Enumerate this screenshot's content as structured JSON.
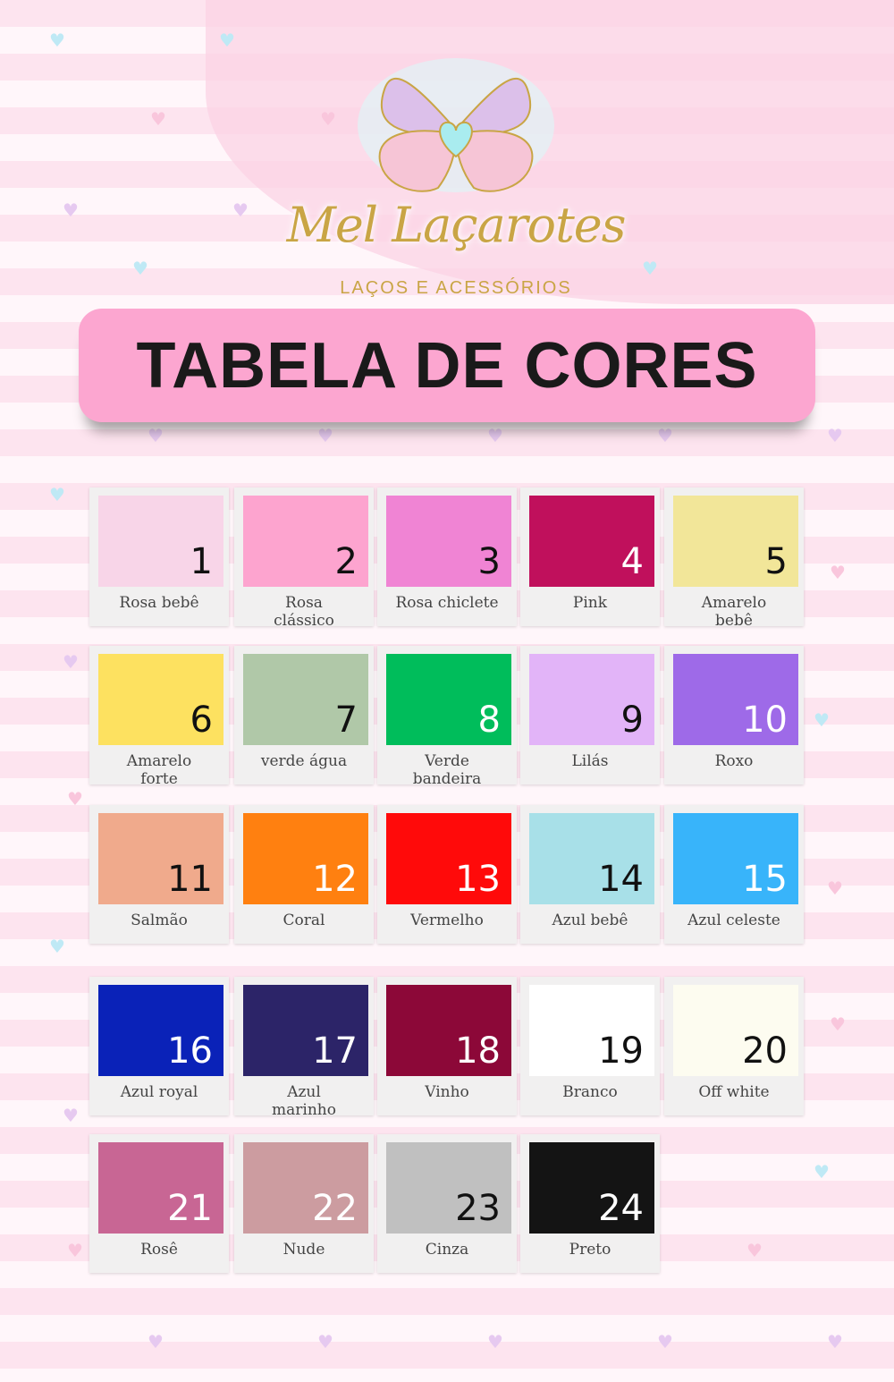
{
  "logo": {
    "brand": "Mel Laçarotes",
    "tagline": "LAÇOS E ACESSÓRIOS"
  },
  "banner": {
    "title": "TABELA DE CORES"
  },
  "colors": [
    {
      "number": "1",
      "name": "Rosa bebê",
      "hex": "#f8d5e8"
    },
    {
      "number": "2",
      "name": "Rosa clássico",
      "hex": "#fda4cf"
    },
    {
      "number": "3",
      "name": "Rosa chiclete",
      "hex": "#f084d4"
    },
    {
      "number": "4",
      "name": "Pink",
      "hex": "#c0105c"
    },
    {
      "number": "5",
      "name": "Amarelo bebê",
      "hex": "#f2e699"
    },
    {
      "number": "6",
      "name": "Amarelo forte",
      "hex": "#fde160"
    },
    {
      "number": "7",
      "name": "verde água",
      "hex": "#b0c8a8"
    },
    {
      "number": "8",
      "name": "Verde bandeira",
      "hex": "#00bd5b"
    },
    {
      "number": "9",
      "name": "Lilás",
      "hex": "#e2b4f8"
    },
    {
      "number": "10",
      "name": "Roxo",
      "hex": "#9e6ae8"
    },
    {
      "number": "11",
      "name": "Salmão",
      "hex": "#f0aa8c"
    },
    {
      "number": "12",
      "name": "Coral",
      "hex": "#ff8010"
    },
    {
      "number": "13",
      "name": "Vermelho",
      "hex": "#ff0a0a"
    },
    {
      "number": "14",
      "name": "Azul bebê",
      "hex": "#a8e0e8"
    },
    {
      "number": "15",
      "name": "Azul celeste",
      "hex": "#38b4fa"
    },
    {
      "number": "16",
      "name": "Azul royal",
      "hex": "#0a22b8"
    },
    {
      "number": "17",
      "name": "Azul marinho",
      "hex": "#2c2468"
    },
    {
      "number": "18",
      "name": "Vinho",
      "hex": "#8c0838"
    },
    {
      "number": "19",
      "name": "Branco",
      "hex": "#ffffff"
    },
    {
      "number": "20",
      "name": "Off white",
      "hex": "#fdfcf0"
    },
    {
      "number": "21",
      "name": "Rosê",
      "hex": "#c86694"
    },
    {
      "number": "22",
      "name": "Nude",
      "hex": "#cc9ca0"
    },
    {
      "number": "23",
      "name": "Cinza",
      "hex": "#c0c0c0"
    },
    {
      "number": "24",
      "name": "Preto",
      "hex": "#141414"
    }
  ]
}
